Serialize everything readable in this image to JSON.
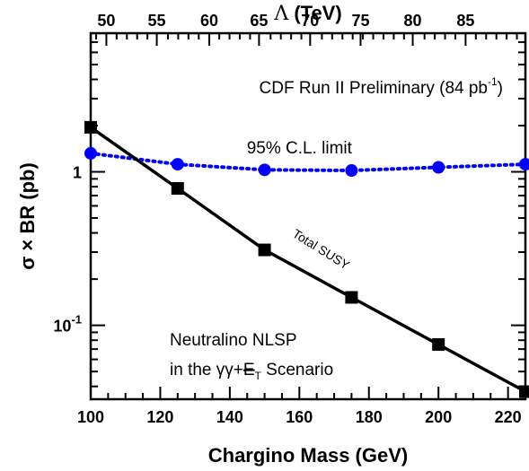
{
  "chart_data": {
    "type": "line",
    "x_axis": {
      "label": "Chargino Mass (GeV)",
      "range": [
        100,
        225
      ],
      "ticks": [
        100,
        120,
        140,
        160,
        180,
        200,
        220
      ],
      "tick_labels": [
        "100",
        "120",
        "140",
        "160",
        "180",
        "200",
        "220"
      ]
    },
    "x_top_axis": {
      "label_symbol": "Λ",
      "label_rest": " (TeV)",
      "ticks_chargino_mass": [
        104.5,
        119.0,
        134.1,
        148.4,
        163.1,
        177.6,
        192.6,
        207.8
      ],
      "tick_labels": [
        "50",
        "55",
        "60",
        "65",
        "70",
        "75",
        "80",
        "85"
      ]
    },
    "y_axis": {
      "label": "σ × BR  (pb)",
      "scale": "log",
      "range": [
        0.033,
        8.0
      ],
      "labeled_ticks": [
        {
          "value": 1,
          "text": "1",
          "sup": ""
        },
        {
          "value": 0.1,
          "text": "10",
          "sup": "-1"
        }
      ]
    },
    "series": [
      {
        "label": "95% C.L. limit",
        "color": "#0000ff",
        "style": "dotted",
        "marker": "circle",
        "x": [
          100,
          125,
          150,
          175,
          200,
          225
        ],
        "y": [
          1.32,
          1.12,
          1.03,
          1.02,
          1.07,
          1.12
        ]
      },
      {
        "label": "Total SUSY",
        "color": "#000000",
        "style": "solid",
        "marker": "square",
        "x": [
          100,
          125,
          150,
          175,
          200,
          225
        ],
        "y": [
          1.95,
          0.78,
          0.31,
          0.152,
          0.075,
          0.037
        ]
      }
    ],
    "annotations": {
      "experiment": "CDF Run II Preliminary (84 pb",
      "experiment_sup": "-1",
      "experiment_close": ")",
      "scenario_line1": "Neutralino NLSP",
      "scenario_line2_pre": "in the γγ+",
      "scenario_met": "E",
      "scenario_met_sub": "T",
      "scenario_line2_post": " Scenario"
    },
    "grid": false,
    "legend": "none"
  }
}
